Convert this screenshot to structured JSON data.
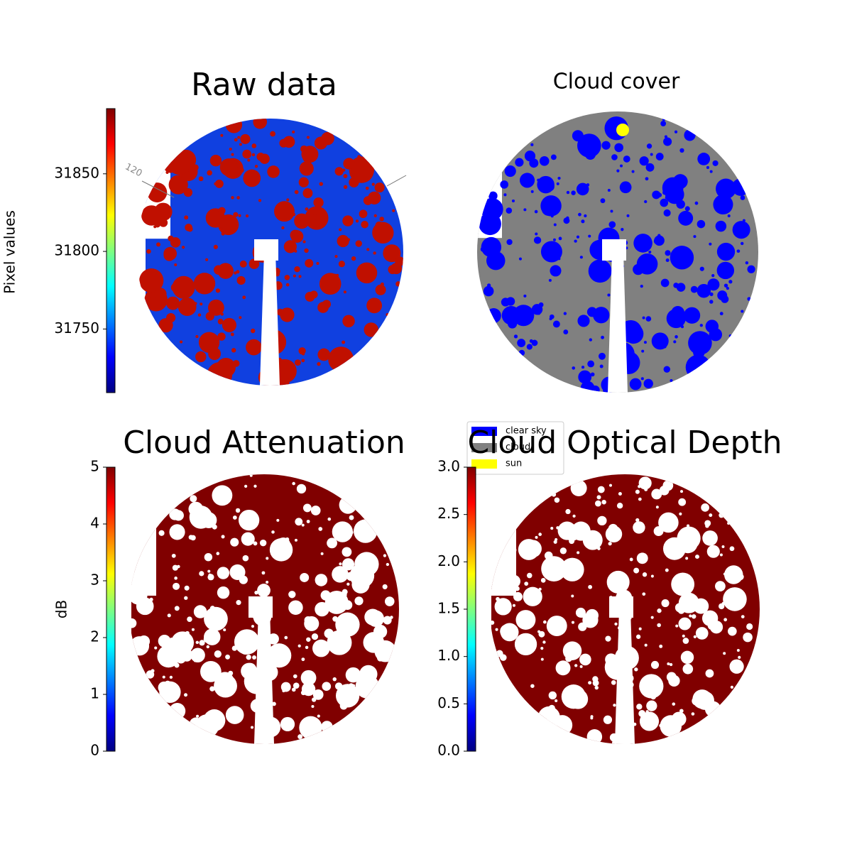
{
  "chart_data": [
    {
      "type": "image",
      "title": "Raw data",
      "annotation": "120",
      "colorbar": {
        "label": "Pixel values",
        "colormap": "jet",
        "lim": [
          31709,
          31892
        ],
        "ticks": [
          31750,
          31800,
          31850
        ]
      }
    },
    {
      "type": "image",
      "title": "Cloud cover",
      "legend": [
        {
          "name": "clear sky",
          "color": "#0000ff"
        },
        {
          "name": "cloud",
          "color": "#808080"
        },
        {
          "name": "sun",
          "color": "#ffff00"
        }
      ]
    },
    {
      "type": "image",
      "title": "Cloud Attenuation",
      "colorbar": {
        "label": "dB",
        "colormap": "jet",
        "lim": [
          0,
          5
        ],
        "ticks": [
          0,
          1,
          2,
          3,
          4,
          5
        ]
      }
    },
    {
      "type": "image",
      "title": "Cloud Optical Depth",
      "colorbar": {
        "colormap": "jet",
        "lim": [
          0,
          3
        ],
        "ticks": [
          {
            "value": 0,
            "label": "0.0"
          },
          {
            "value": 0.5,
            "label": "0.5"
          },
          {
            "value": 1,
            "label": "1.0"
          },
          {
            "value": 1.5,
            "label": "1.5"
          },
          {
            "value": 2,
            "label": "2.0"
          },
          {
            "value": 2.5,
            "label": "2.5"
          },
          {
            "value": 3,
            "label": "3.0"
          }
        ]
      }
    }
  ]
}
